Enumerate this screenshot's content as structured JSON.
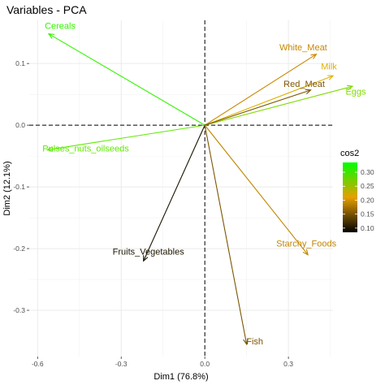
{
  "chart_data": {
    "type": "pca-variables-biplot",
    "title": "Variables - PCA",
    "xlabel": "Dim1 (76.8%)",
    "ylabel": "Dim2 (12.1%)",
    "xlim": [
      -0.63,
      0.46
    ],
    "ylim": [
      -0.375,
      0.17
    ],
    "xticks": [
      -0.6,
      -0.3,
      0.0,
      0.3
    ],
    "xtick_labels": [
      "-0.6",
      "-0.3",
      "0.0",
      "0.3"
    ],
    "yticks": [
      0.1,
      0.0,
      -0.1,
      -0.2,
      -0.3
    ],
    "ytick_labels": [
      "0.1",
      "0.0",
      "-0.1",
      "-0.2",
      "-0.3"
    ],
    "grid": true,
    "reference_lines": {
      "x": 0,
      "y": 0,
      "style": "dashed"
    },
    "legend": {
      "title": "cos2",
      "position": "right",
      "range": [
        0.085,
        0.335
      ],
      "ticks": [
        0.3,
        0.25,
        0.2,
        0.15,
        0.1
      ],
      "tick_labels": [
        "0.30",
        "0.25",
        "0.20",
        "0.15",
        "0.10"
      ],
      "gradient": [
        {
          "value": 0.085,
          "color": "#000000"
        },
        {
          "value": 0.21,
          "color": "#e69f00"
        },
        {
          "value": 0.335,
          "color": "#00ff00"
        }
      ]
    },
    "variables": [
      {
        "name": "Cereals",
        "x": -0.56,
        "y": 0.148,
        "cos2": 0.33,
        "color": "#33f300"
      },
      {
        "name": "Pulses_nuts_oilseeds",
        "x": -0.565,
        "y": -0.04,
        "cos2": 0.31,
        "color": "#5eea00"
      },
      {
        "name": "Fruits_Vegetables",
        "x": -0.22,
        "y": -0.22,
        "cos2": 0.1,
        "color": "#1b1500"
      },
      {
        "name": "Fish",
        "x": 0.15,
        "y": -0.355,
        "cos2": 0.15,
        "color": "#7a5600"
      },
      {
        "name": "Starchy_Foods",
        "x": 0.37,
        "y": -0.21,
        "cos2": 0.19,
        "color": "#c08600"
      },
      {
        "name": "Eggs",
        "x": 0.53,
        "y": 0.063,
        "cos2": 0.3,
        "color": "#7fdb00"
      },
      {
        "name": "Milk",
        "x": 0.46,
        "y": 0.08,
        "cos2": 0.23,
        "color": "#dfb100"
      },
      {
        "name": "White_Meat",
        "x": 0.4,
        "y": 0.115,
        "cos2": 0.18,
        "color": "#c88700"
      },
      {
        "name": "Red_Meat",
        "x": 0.38,
        "y": 0.057,
        "cos2": 0.15,
        "color": "#7d5600"
      }
    ]
  }
}
